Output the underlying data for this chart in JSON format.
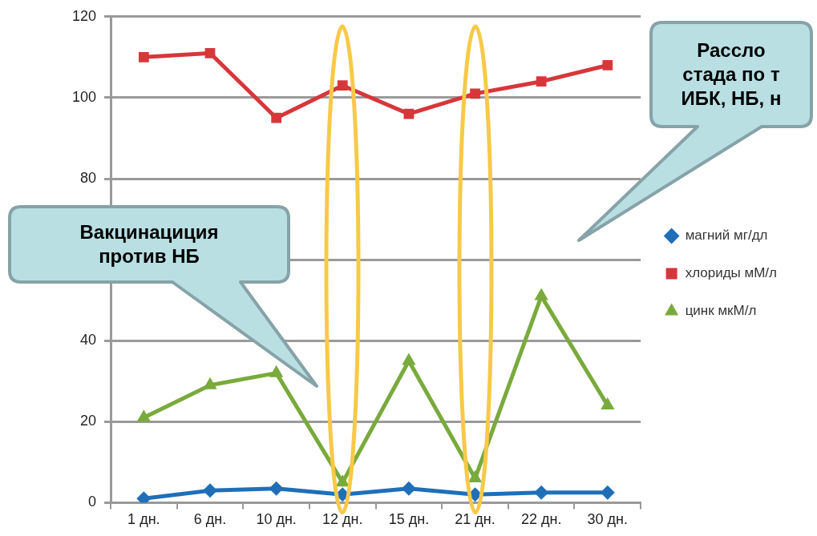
{
  "chart_data": {
    "type": "line",
    "categories": [
      "1 дн.",
      "6 дн.",
      "10 дн.",
      "12 дн.",
      "15 дн.",
      "21 дн.",
      "22 дн.",
      "30 дн."
    ],
    "series": [
      {
        "name": "магний мг/дл",
        "color": "#1f6fb8",
        "marker": "diamond",
        "values": [
          1,
          3,
          3.5,
          2,
          3.5,
          2,
          2.5,
          2.5
        ]
      },
      {
        "name": "хлориды мМ/л",
        "color": "#d6373b",
        "marker": "square",
        "values": [
          110,
          111,
          95,
          103,
          96,
          101,
          104,
          108
        ]
      },
      {
        "name": "цинк мкМ/л",
        "color": "#79aa3c",
        "marker": "triangle",
        "values": [
          21,
          29,
          32,
          5,
          35,
          6,
          51,
          24
        ]
      }
    ],
    "ylim": [
      0,
      120
    ],
    "yticks": [
      0,
      20,
      40,
      {
        "value": 60,
        "label": null
      },
      80,
      100,
      120
    ],
    "grid": "y",
    "legend": "right",
    "annotations": [
      "Вакцинациция\nпротив НБ",
      "Рассло\nстада по т\nИБК, НБ, н"
    ]
  }
}
